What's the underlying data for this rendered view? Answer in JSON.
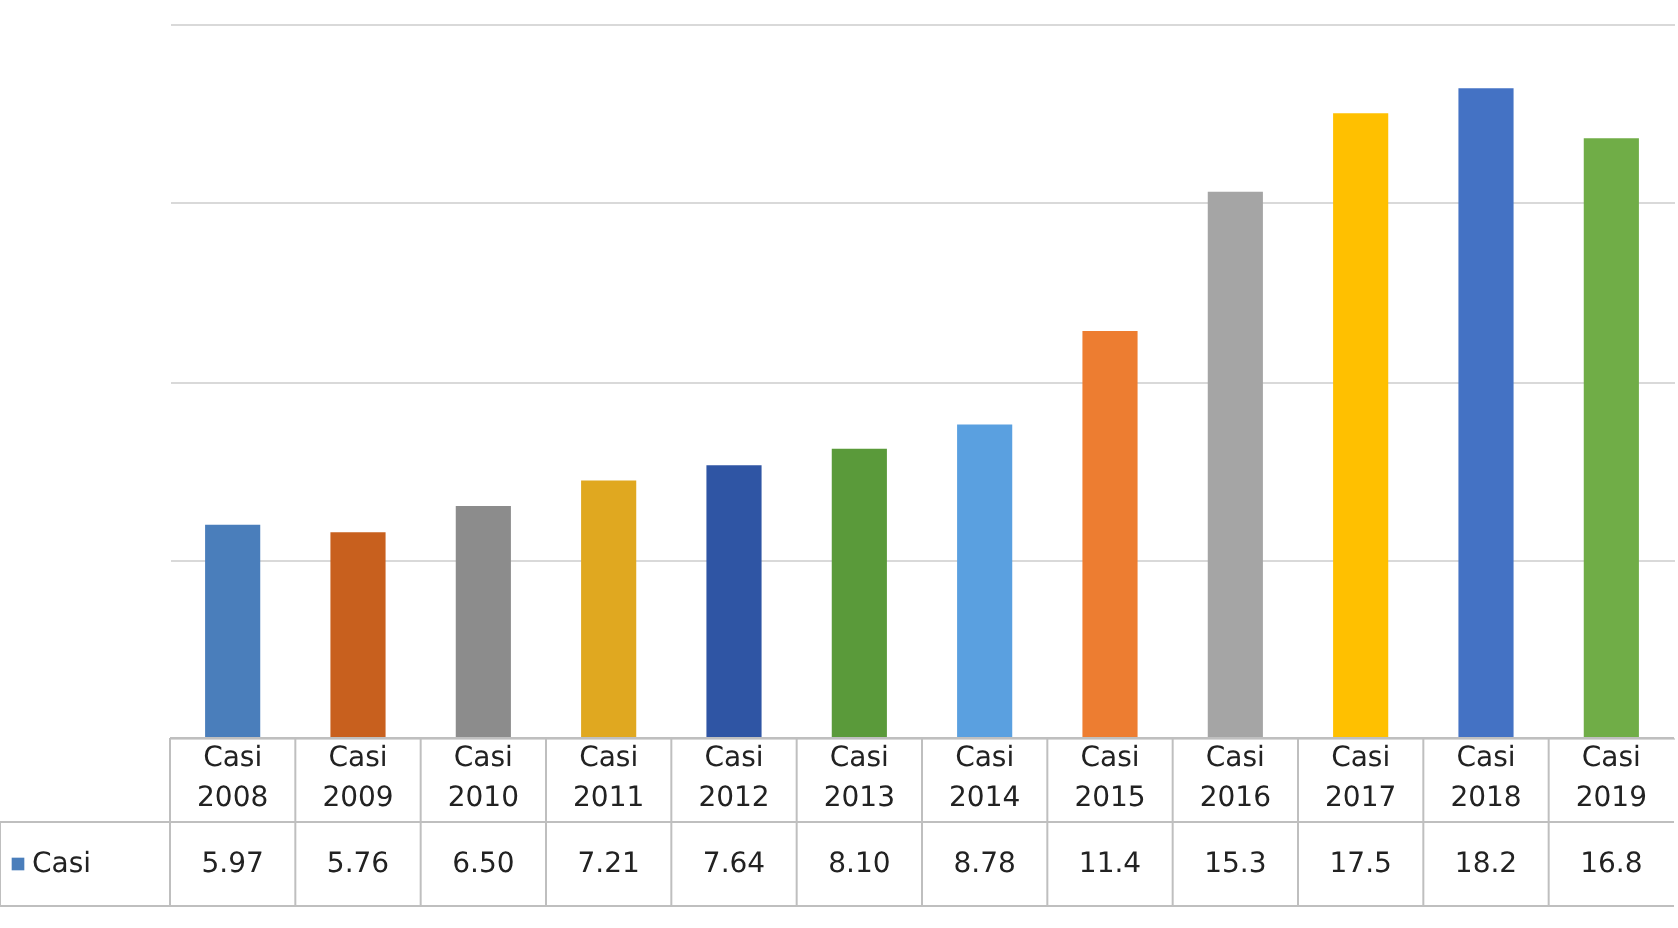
{
  "chart_data": {
    "type": "bar",
    "categories": [
      "Casi 2008",
      "Casi 2009",
      "Casi 2010",
      "Casi 2011",
      "Casi 2012",
      "Casi 2013",
      "Casi 2014",
      "Casi 2015",
      "Casi 2016",
      "Casi 2017",
      "Casi 2018",
      "Casi 2019"
    ],
    "series": [
      {
        "name": "Casi",
        "color": "#4a7ebb",
        "colors": [
          "#4a7ebb",
          "#c8601e",
          "#8c8c8c",
          "#e0a820",
          "#2f55a4",
          "#5a9a3a",
          "#5aa0e0",
          "#ed7d31",
          "#a5a5a5",
          "#ffc000",
          "#4472c4",
          "#70ad47"
        ],
        "values": [
          5.97,
          5.76,
          6.5,
          7.21,
          7.64,
          8.1,
          8.78,
          11.4,
          15.3,
          17.5,
          18.2,
          16.8
        ],
        "value_labels": [
          "5.97",
          "5.76",
          "6.50",
          "7.21",
          "7.64",
          "8.10",
          "8.78",
          "11.4",
          "15.3",
          "17.5",
          "18.2",
          "16.8"
        ]
      }
    ],
    "grid": "y",
    "tick_labels": "x",
    "legend": "bottom"
  }
}
